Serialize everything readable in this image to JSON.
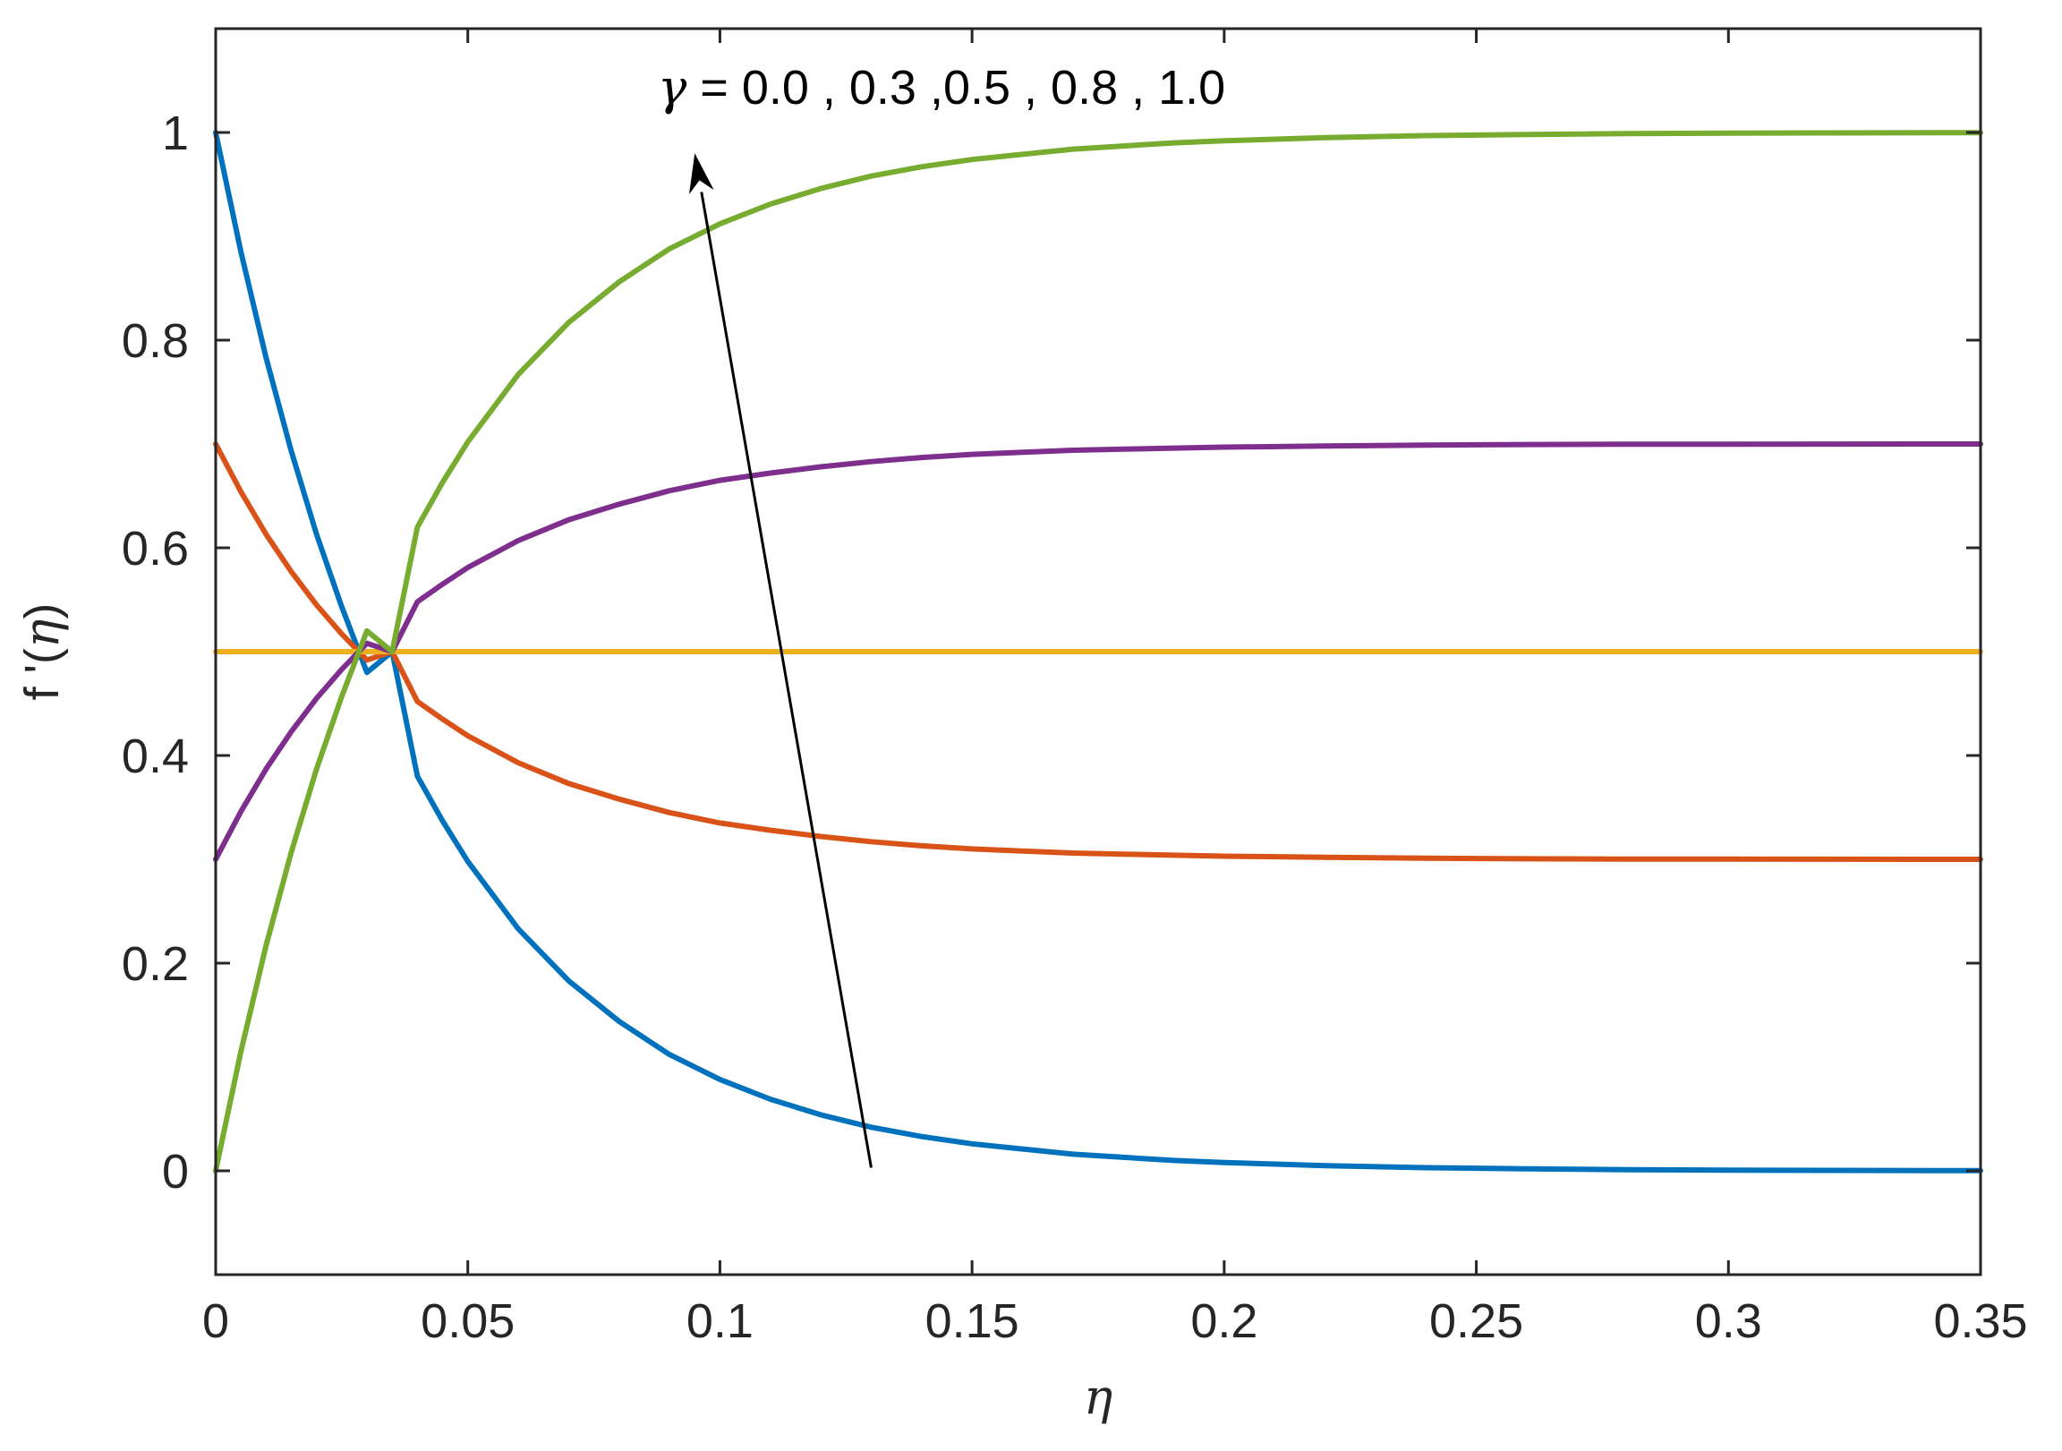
{
  "chart_data": {
    "type": "line",
    "title": "",
    "xlabel": "η",
    "ylabel_prefix": "f '(",
    "ylabel_var": "η",
    "ylabel_suffix": ")",
    "xlim": [
      0,
      0.35
    ],
    "ylim": [
      -0.1,
      1.1
    ],
    "x_ticks": [
      0,
      0.05,
      0.1,
      0.15,
      0.2,
      0.25,
      0.3,
      0.35
    ],
    "x_tick_labels": [
      "0",
      "0.05",
      "0.1",
      "0.15",
      "0.2",
      "0.25",
      "0.3",
      "0.35"
    ],
    "y_ticks": [
      0,
      0.2,
      0.4,
      0.6,
      0.8,
      1
    ],
    "y_tick_labels": [
      "0",
      "0.2",
      "0.4",
      "0.6",
      "0.8",
      "1"
    ],
    "grid": false,
    "box": true,
    "annotation": {
      "symbol": "γ",
      "text": " = 0.0 , 0.3 ,0.5 , 0.8 , 1.0",
      "arrow_from": [
        0.13,
        0.003
      ],
      "arrow_to": [
        0.095,
        0.98
      ]
    },
    "series": [
      {
        "color": "#0072BD",
        "x": [
          0,
          0.005,
          0.01,
          0.015,
          0.02,
          0.025,
          0.03,
          0.035,
          0.04,
          0.045,
          0.05,
          0.06,
          0.07,
          0.08,
          0.09,
          0.1,
          0.11,
          0.12,
          0.13,
          0.14,
          0.15,
          0.16,
          0.17,
          0.18,
          0.19,
          0.2,
          0.22,
          0.24,
          0.26,
          0.28,
          0.3,
          0.32,
          0.35
        ],
        "values": [
          1.0,
          0.885,
          0.783,
          0.693,
          0.613,
          0.543,
          0.48,
          0.5,
          0.38,
          0.337,
          0.298,
          0.233,
          0.183,
          0.144,
          0.112,
          0.088,
          0.069,
          0.054,
          0.042,
          0.033,
          0.026,
          0.021,
          0.016,
          0.013,
          0.01,
          0.008,
          0.005,
          0.003,
          0.002,
          0.001,
          0.0007,
          0.0004,
          0.0002
        ]
      },
      {
        "color": "#D95319",
        "x": [
          0,
          0.005,
          0.01,
          0.015,
          0.02,
          0.025,
          0.03,
          0.035,
          0.04,
          0.045,
          0.05,
          0.06,
          0.07,
          0.08,
          0.09,
          0.1,
          0.11,
          0.12,
          0.13,
          0.14,
          0.15,
          0.16,
          0.17,
          0.18,
          0.19,
          0.2,
          0.22,
          0.24,
          0.26,
          0.28,
          0.3,
          0.32,
          0.35
        ],
        "values": [
          0.7,
          0.654,
          0.613,
          0.577,
          0.545,
          0.517,
          0.492,
          0.5,
          0.452,
          0.435,
          0.419,
          0.393,
          0.373,
          0.358,
          0.345,
          0.335,
          0.328,
          0.322,
          0.317,
          0.313,
          0.31,
          0.308,
          0.306,
          0.305,
          0.304,
          0.303,
          0.302,
          0.301,
          0.3005,
          0.3003,
          0.3002,
          0.3001,
          0.3
        ]
      },
      {
        "color": "#EDB120",
        "x": [
          0,
          0.35
        ],
        "values": [
          0.5,
          0.5
        ]
      },
      {
        "color": "#7E2F8E",
        "x": [
          0,
          0.005,
          0.01,
          0.015,
          0.02,
          0.025,
          0.03,
          0.035,
          0.04,
          0.045,
          0.05,
          0.06,
          0.07,
          0.08,
          0.09,
          0.1,
          0.11,
          0.12,
          0.13,
          0.14,
          0.15,
          0.16,
          0.17,
          0.18,
          0.19,
          0.2,
          0.22,
          0.24,
          0.26,
          0.28,
          0.3,
          0.32,
          0.35
        ],
        "values": [
          0.3,
          0.346,
          0.387,
          0.423,
          0.455,
          0.483,
          0.508,
          0.5,
          0.548,
          0.565,
          0.581,
          0.607,
          0.627,
          0.642,
          0.655,
          0.665,
          0.672,
          0.678,
          0.683,
          0.687,
          0.69,
          0.692,
          0.694,
          0.695,
          0.696,
          0.697,
          0.698,
          0.699,
          0.6995,
          0.6997,
          0.6998,
          0.6999,
          0.7
        ]
      },
      {
        "color": "#77AC30",
        "x": [
          0,
          0.005,
          0.01,
          0.015,
          0.02,
          0.025,
          0.03,
          0.035,
          0.04,
          0.045,
          0.05,
          0.06,
          0.07,
          0.08,
          0.09,
          0.1,
          0.11,
          0.12,
          0.13,
          0.14,
          0.15,
          0.16,
          0.17,
          0.18,
          0.19,
          0.2,
          0.22,
          0.24,
          0.26,
          0.28,
          0.3,
          0.32,
          0.35
        ],
        "values": [
          0.0,
          0.115,
          0.217,
          0.307,
          0.387,
          0.457,
          0.52,
          0.5,
          0.62,
          0.663,
          0.702,
          0.767,
          0.817,
          0.856,
          0.888,
          0.912,
          0.931,
          0.946,
          0.958,
          0.967,
          0.974,
          0.979,
          0.984,
          0.987,
          0.99,
          0.992,
          0.995,
          0.997,
          0.998,
          0.999,
          0.9993,
          0.9996,
          0.9998
        ]
      }
    ]
  }
}
